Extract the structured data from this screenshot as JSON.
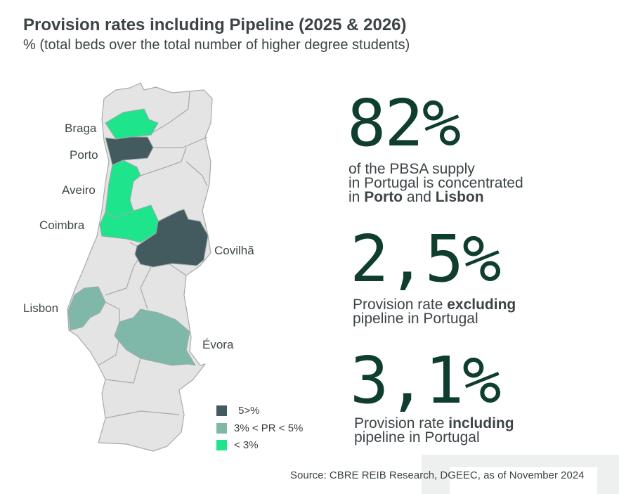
{
  "title": "Provision rates including Pipeline (2025 & 2026)",
  "subtitle": "% (total beds over the total number of higher degree students)",
  "map_labels": {
    "braga": "Braga",
    "porto": "Porto",
    "aveiro": "Aveiro",
    "coimbra": "Coimbra",
    "covilha": "Covilhã",
    "lisbon": "Lisbon",
    "evora": "Évora"
  },
  "colors": {
    "high": "#435b5e",
    "mid": "#7fb8a8",
    "low": "#1ee48c",
    "other": "#e4e4e4",
    "number": "#0f3d2e"
  },
  "legend": [
    {
      "label": "5>%",
      "color": "#435b5e"
    },
    {
      "label": "3% < PR < 5%",
      "color": "#7fb8a8"
    },
    {
      "label": "< 3%",
      "color": "#1ee48c"
    }
  ],
  "stats": [
    {
      "value": "82%",
      "line1": "of the PBSA supply",
      "line2": "in Portugal is concentrated",
      "line3_pre": "in ",
      "bold1": "Porto",
      "mid": " and ",
      "bold2": "Lisbon"
    },
    {
      "value": "2,5%",
      "pre": "Provision rate ",
      "bold": "excluding",
      "line2": "pipeline in Portugal"
    },
    {
      "value": "3,1%",
      "pre": "Provision rate ",
      "bold": "including",
      "line2": "pipeline in Portugal"
    }
  ],
  "source": "Source: CBRE REIB Research, DGEEC, as of November 2024"
}
